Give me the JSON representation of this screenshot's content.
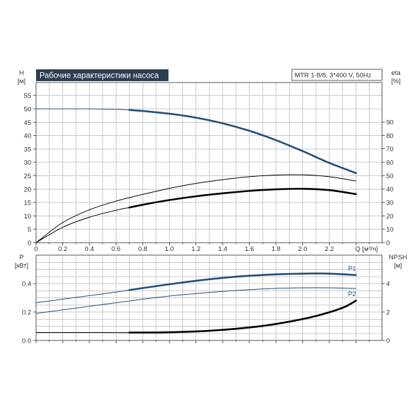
{
  "title": "Рабочие характеристики насоса",
  "model": "MTR 1-8/8, 3*400 V, 50Hz",
  "chart_data": [
    {
      "type": "line",
      "panel": "top",
      "xlabel": "Q [м³/ч]",
      "ylabel_left": [
        "H",
        "[м]"
      ],
      "ylabel_right": [
        "eta",
        "[%]"
      ],
      "xlim": [
        0,
        2.6
      ],
      "ylim_left": [
        0,
        60
      ],
      "ylim_right": [
        0,
        120
      ],
      "x_ticks": [
        "0",
        "0.2",
        "0.4",
        "0.6",
        "0.8",
        "1.0",
        "1.2",
        "1.4",
        "1.6",
        "1.8",
        "2.0",
        "2.2"
      ],
      "y_ticks_left": [
        "0",
        "5",
        "10",
        "15",
        "20",
        "25",
        "30",
        "35",
        "40",
        "45",
        "50",
        "55"
      ],
      "y_ticks_right": [
        "0",
        "10",
        "20",
        "30",
        "40",
        "50",
        "60",
        "70",
        "80",
        "90"
      ],
      "grid": true,
      "series": [
        {
          "axis": "left",
          "color": "#1f4e79",
          "thin": [
            [
              0,
              50
            ],
            [
              0.2,
              50
            ],
            [
              0.4,
              50
            ],
            [
              0.6,
              49.8
            ],
            [
              0.7,
              49.6
            ]
          ],
          "thick": [
            [
              0.7,
              49.6
            ],
            [
              0.8,
              49.2
            ],
            [
              1.0,
              48.2
            ],
            [
              1.2,
              46.7
            ],
            [
              1.4,
              44.6
            ],
            [
              1.6,
              41.8
            ],
            [
              1.8,
              38.3
            ],
            [
              2.0,
              34.2
            ],
            [
              2.2,
              29.8
            ],
            [
              2.4,
              26
            ]
          ]
        },
        {
          "axis": "right",
          "color": "#000000",
          "thin": [
            [
              0,
              0
            ],
            [
              0.2,
              15
            ],
            [
              0.4,
              24.5
            ],
            [
              0.6,
              31
            ],
            [
              0.8,
              36
            ],
            [
              1.0,
              40.5
            ],
            [
              1.2,
              44.2
            ],
            [
              1.4,
              47
            ],
            [
              1.6,
              49.2
            ],
            [
              1.8,
              50.4
            ],
            [
              2.0,
              50.6
            ],
            [
              2.2,
              49.2
            ],
            [
              2.4,
              46
            ]
          ]
        },
        {
          "axis": "right",
          "color": "#000000",
          "thin": [
            [
              0,
              0
            ],
            [
              0.2,
              11.5
            ],
            [
              0.4,
              19
            ],
            [
              0.6,
              24.2
            ],
            [
              0.7,
              26.2
            ]
          ],
          "thick": [
            [
              0.7,
              26.2
            ],
            [
              0.8,
              28.3
            ],
            [
              1.0,
              31.8
            ],
            [
              1.2,
              34.6
            ],
            [
              1.4,
              36.8
            ],
            [
              1.6,
              38.6
            ],
            [
              1.8,
              39.8
            ],
            [
              2.0,
              40.2
            ],
            [
              2.2,
              39.2
            ],
            [
              2.4,
              36.2
            ]
          ]
        }
      ]
    },
    {
      "type": "line",
      "panel": "bottom",
      "ylabel_left": [
        "P",
        "[кВт]"
      ],
      "ylabel_right": [
        "NPSH",
        "[м]"
      ],
      "xlim": [
        0,
        2.6
      ],
      "ylim_left": [
        0,
        0.6
      ],
      "ylim_right": [
        0,
        6
      ],
      "y_ticks_left": [
        "0.0",
        "0.2",
        "0.4"
      ],
      "y_ticks_right": [
        "0",
        "2",
        "4"
      ],
      "grid": true,
      "series": [
        {
          "name": "P1",
          "axis": "left",
          "color": "#1f4e79",
          "thin": [
            [
              0,
              0.265
            ],
            [
              0.2,
              0.29
            ],
            [
              0.4,
              0.315
            ],
            [
              0.6,
              0.34
            ],
            [
              0.7,
              0.355
            ]
          ],
          "thick": [
            [
              0.7,
              0.355
            ],
            [
              1.0,
              0.395
            ],
            [
              1.2,
              0.42
            ],
            [
              1.4,
              0.44
            ],
            [
              1.6,
              0.455
            ],
            [
              1.8,
              0.465
            ],
            [
              2.0,
              0.47
            ],
            [
              2.2,
              0.47
            ],
            [
              2.4,
              0.46
            ]
          ]
        },
        {
          "name": "P2",
          "axis": "left",
          "color": "#1f4e79",
          "thin": [
            [
              0,
              0.19
            ],
            [
              0.2,
              0.215
            ],
            [
              0.4,
              0.24
            ],
            [
              0.6,
              0.265
            ],
            [
              0.8,
              0.29
            ],
            [
              1.0,
              0.312
            ],
            [
              1.2,
              0.33
            ],
            [
              1.4,
              0.345
            ],
            [
              1.6,
              0.357
            ],
            [
              1.8,
              0.366
            ],
            [
              2.0,
              0.37
            ],
            [
              2.2,
              0.37
            ],
            [
              2.4,
              0.365
            ]
          ]
        },
        {
          "axis": "right",
          "color": "#000000",
          "thin": [
            [
              0,
              0.56
            ],
            [
              0.2,
              0.56
            ],
            [
              0.4,
              0.56
            ],
            [
              0.6,
              0.555
            ],
            [
              0.7,
              0.555
            ]
          ],
          "thick": [
            [
              0.7,
              0.555
            ],
            [
              0.9,
              0.56
            ],
            [
              1.1,
              0.6
            ],
            [
              1.3,
              0.68
            ],
            [
              1.5,
              0.82
            ],
            [
              1.7,
              1.02
            ],
            [
              1.9,
              1.32
            ],
            [
              2.1,
              1.72
            ],
            [
              2.3,
              2.3
            ],
            [
              2.4,
              2.8
            ]
          ]
        }
      ]
    }
  ]
}
